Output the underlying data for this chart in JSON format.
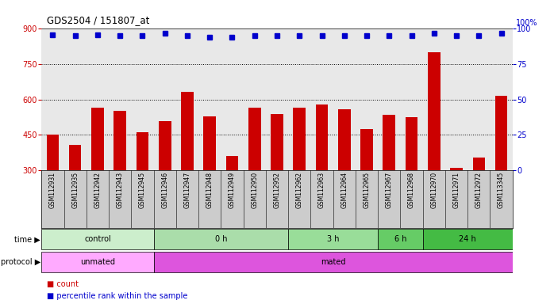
{
  "title": "GDS2504 / 151807_at",
  "samples": [
    "GSM112931",
    "GSM112935",
    "GSM112942",
    "GSM112943",
    "GSM112945",
    "GSM112946",
    "GSM112947",
    "GSM112948",
    "GSM112949",
    "GSM112950",
    "GSM112952",
    "GSM112962",
    "GSM112963",
    "GSM112964",
    "GSM112965",
    "GSM112967",
    "GSM112968",
    "GSM112970",
    "GSM112971",
    "GSM112972",
    "GSM113345"
  ],
  "counts": [
    453,
    408,
    567,
    553,
    463,
    510,
    632,
    530,
    360,
    565,
    540,
    565,
    580,
    560,
    475,
    535,
    525,
    800,
    310,
    355,
    615
  ],
  "percentile_ranks": [
    96,
    95,
    96,
    95,
    95,
    97,
    95,
    94,
    94,
    95,
    95,
    95,
    95,
    95,
    95,
    95,
    95,
    97,
    95,
    95,
    97
  ],
  "bar_color": "#cc0000",
  "dot_color": "#0000cc",
  "ylim_left": [
    300,
    900
  ],
  "ylim_right": [
    0,
    100
  ],
  "yticks_left": [
    300,
    450,
    600,
    750,
    900
  ],
  "yticks_right": [
    0,
    25,
    50,
    75,
    100
  ],
  "grid_values": [
    450,
    600,
    750
  ],
  "time_groups": [
    {
      "label": "control",
      "start": 0,
      "end": 5
    },
    {
      "label": "0 h",
      "start": 5,
      "end": 11
    },
    {
      "label": "3 h",
      "start": 11,
      "end": 15
    },
    {
      "label": "6 h",
      "start": 15,
      "end": 17
    },
    {
      "label": "24 h",
      "start": 17,
      "end": 21
    }
  ],
  "time_colors": [
    "#cceecc",
    "#aaddaa",
    "#99dd99",
    "#66cc66",
    "#44bb44"
  ],
  "protocol_groups": [
    {
      "label": "unmated",
      "start": 0,
      "end": 5
    },
    {
      "label": "mated",
      "start": 5,
      "end": 21
    }
  ],
  "proto_colors": [
    "#ffaaff",
    "#dd55dd"
  ],
  "left_axis_color": "#cc0000",
  "right_axis_color": "#0000cc",
  "plot_bg_color": "#e8e8e8",
  "sample_bg_color": "#cccccc"
}
